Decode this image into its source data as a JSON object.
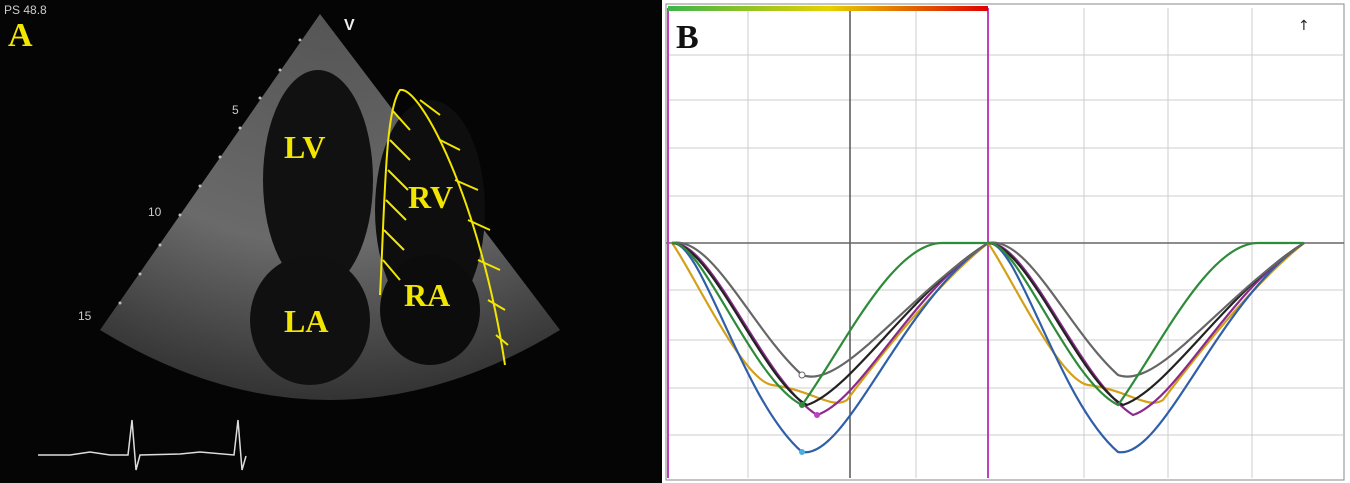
{
  "panels": [
    {
      "label": "A",
      "header": "PS 48.8",
      "marker": "V",
      "depth_marks": [
        "5",
        "10",
        "15"
      ],
      "chambers": [
        "LV",
        "RV",
        "LA",
        "RA"
      ]
    },
    {
      "label": "B",
      "marker": "↑"
    }
  ]
}
